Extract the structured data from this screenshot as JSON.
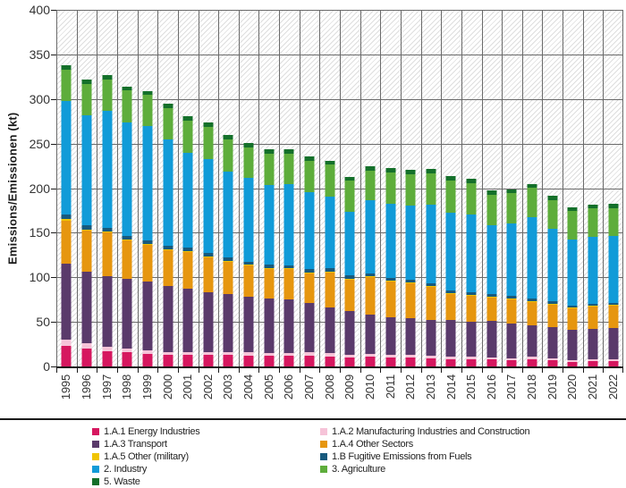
{
  "chart_data": {
    "type": "bar",
    "stacked": true,
    "title": "",
    "xlabel": "",
    "ylabel": "Emissions/Emissionen (kt)",
    "ylim": [
      0,
      400
    ],
    "ytick_step": 50,
    "yticks": [
      "0",
      "50",
      "100",
      "150",
      "200",
      "250",
      "300",
      "350",
      "400"
    ],
    "grid": true,
    "background_hatch": true,
    "legend_position": "bottom",
    "categories": [
      "1995",
      "1996",
      "1997",
      "1998",
      "1999",
      "2000",
      "2001",
      "2002",
      "2003",
      "2004",
      "2005",
      "2006",
      "2007",
      "2008",
      "2009",
      "2010",
      "2011",
      "2012",
      "2013",
      "2014",
      "2015",
      "2016",
      "2017",
      "2018",
      "2019",
      "2020",
      "2021",
      "2022"
    ],
    "series": [
      {
        "name": "1.A.1 Energy Industries",
        "color": "#d6175f",
        "values": [
          23,
          20,
          17,
          16,
          14,
          13,
          13,
          13,
          13,
          12,
          12,
          12,
          12,
          11,
          10,
          11,
          10,
          10,
          9,
          8,
          8,
          8,
          7,
          8,
          7,
          5,
          6,
          6
        ]
      },
      {
        "name": "1.A.2 Manufacturing Industries and Construction",
        "color": "#f6c3d8",
        "values": [
          7,
          6,
          5,
          4,
          4,
          3,
          3,
          3,
          3,
          4,
          3,
          3,
          4,
          4,
          3,
          3,
          3,
          3,
          3,
          3,
          3,
          2,
          2,
          3,
          2,
          2,
          2,
          2
        ]
      },
      {
        "name": "1.A.3 Transport",
        "color": "#5a3a6b",
        "values": [
          85,
          80,
          79,
          78,
          77,
          74,
          71,
          67,
          65,
          62,
          61,
          60,
          55,
          51,
          49,
          44,
          42,
          41,
          40,
          41,
          39,
          41,
          39,
          35,
          35,
          34,
          34,
          35
        ]
      },
      {
        "name": "1.A.4 Other Sectors",
        "color": "#e6960f",
        "values": [
          48,
          46,
          49,
          43,
          41,
          40,
          41,
          39,
          36,
          35,
          33,
          34,
          33,
          39,
          35,
          42,
          40,
          39,
          37,
          29,
          29,
          26,
          27,
          26,
          25,
          24,
          25,
          25
        ]
      },
      {
        "name": "1.A.5 Other (military)",
        "color": "#f0c400",
        "values": [
          2,
          1,
          1,
          1,
          1,
          1,
          1,
          1,
          1,
          1,
          1,
          1,
          1,
          1,
          1,
          1,
          1,
          1,
          1,
          1,
          1,
          1,
          1,
          1,
          1,
          1,
          1,
          1
        ]
      },
      {
        "name": "1.B Fugitive Emissions from Fuels",
        "color": "#175a7d",
        "values": [
          5,
          5,
          4,
          4,
          4,
          4,
          4,
          4,
          4,
          3,
          4,
          3,
          4,
          4,
          4,
          3,
          3,
          3,
          3,
          3,
          3,
          3,
          3,
          3,
          3,
          2,
          2,
          2
        ]
      },
      {
        "name": "2. Industry",
        "color": "#119bd8",
        "values": [
          128,
          124,
          132,
          128,
          129,
          120,
          107,
          106,
          97,
          95,
          90,
          92,
          87,
          81,
          71,
          83,
          84,
          84,
          89,
          88,
          88,
          77,
          81,
          91,
          81,
          74,
          75,
          75
        ]
      },
      {
        "name": "3. Agriculture",
        "color": "#5ead3b",
        "values": [
          35,
          35,
          35,
          36,
          35,
          35,
          36,
          36,
          36,
          34,
          35,
          34,
          35,
          36,
          36,
          33,
          35,
          35,
          35,
          36,
          35,
          35,
          35,
          34,
          33,
          33,
          33,
          32
        ]
      },
      {
        "name": "5. Waste",
        "color": "#14702a",
        "values": [
          5,
          5,
          5,
          4,
          4,
          5,
          5,
          5,
          5,
          5,
          5,
          5,
          5,
          4,
          4,
          5,
          5,
          5,
          5,
          5,
          5,
          5,
          4,
          4,
          5,
          4,
          4,
          5
        ]
      }
    ]
  },
  "colors": {
    "gridline": "#6a6a6a",
    "axis": "#1a1a1a",
    "hatch": "#dedede",
    "text": "#333333"
  }
}
